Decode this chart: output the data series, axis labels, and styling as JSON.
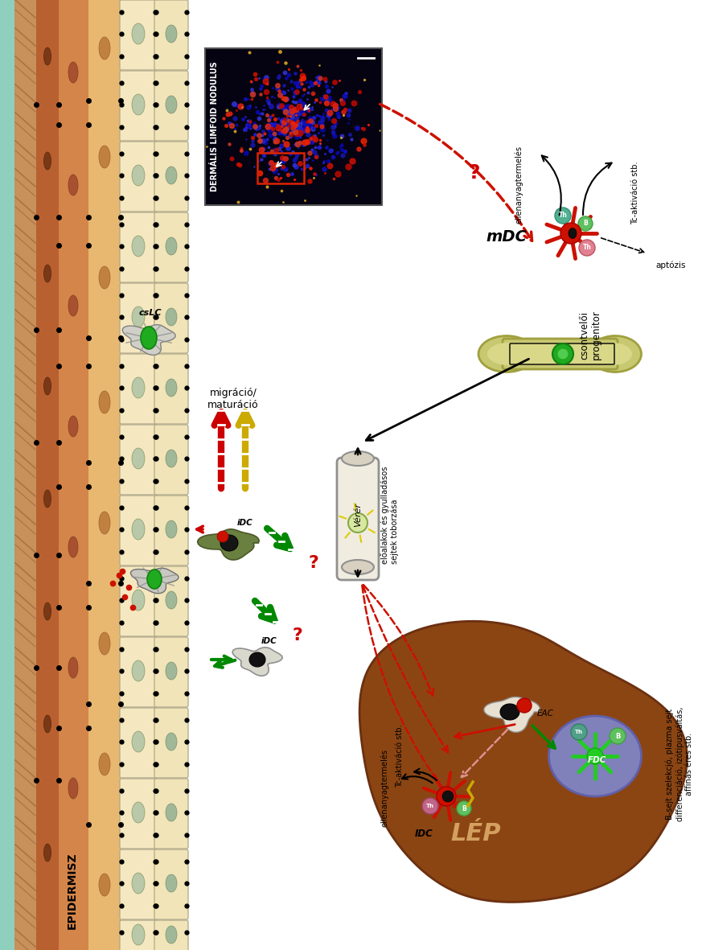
{
  "epidermisz_label": "EPIDERMISZ",
  "csLC_label": "csLC",
  "iDC_label1": "iDC",
  "iDC_label2": "iDC",
  "mDC_label": "mDC",
  "IDC_label": "IDC",
  "FDC_label": "FDC",
  "EAC_label": "EAC",
  "lep_label": "LÉP",
  "ver_label": "Vérér",
  "nodulus_label": "DERMÁLIS LIMFOID NODULUS",
  "csontveloi_label": "csontvelői\nprogenitor",
  "migracio_label": "migráció/\nmaturáció",
  "ellenanyag_lep": "ellenanyagtermelés",
  "tc_aktivacio_lep": "Tc-aktiváció stb.",
  "ellenanyag_mdc": "ellenanyagtermelés",
  "tc_aktivacio_mdc": "Tc-aktiváció stb.",
  "apoptozis_label": "aptózis",
  "eloalakok_label": "előalakok és gyulladásos\nsejtek toborzása",
  "b_sejt_label": "B-sejt szelekcjó, plazma sejt\ndifferenciáció, izótipusváltás,\naffinás éres stb.",
  "bg_color": "#ffffff"
}
